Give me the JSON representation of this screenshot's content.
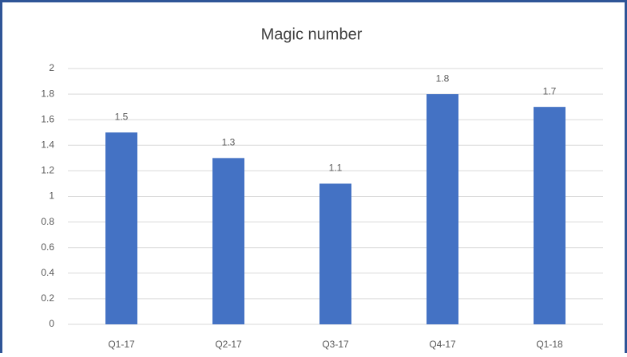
{
  "chart_data": {
    "type": "bar",
    "title": "Magic number",
    "categories": [
      "Q1-17",
      "Q2-17",
      "Q3-17",
      "Q4-17",
      "Q1-18"
    ],
    "values": [
      1.5,
      1.3,
      1.1,
      1.8,
      1.7
    ],
    "color": "#4472c4",
    "ylim": [
      0,
      2
    ],
    "yticks": [
      0,
      0.2,
      0.4,
      0.6,
      0.8,
      1,
      1.2,
      1.4,
      1.6,
      1.8,
      2
    ],
    "grid": true
  }
}
